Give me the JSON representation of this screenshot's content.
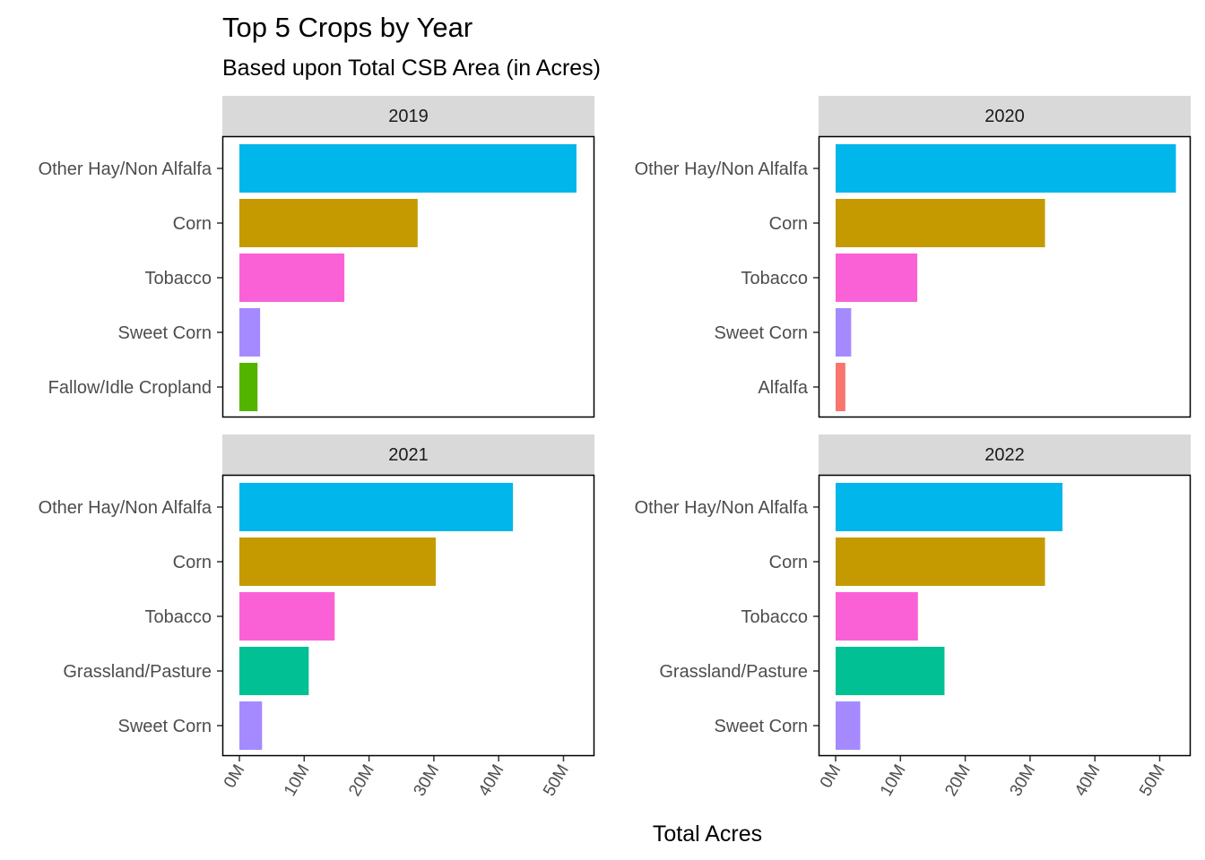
{
  "chart_data": {
    "type": "bar",
    "orientation": "horizontal",
    "title": "Top 5 Crops by Year",
    "subtitle": "Based upon Total CSB Area (in Acres)",
    "xlabel": "Total Acres",
    "ylabel": "",
    "xlim": [
      0,
      55000000
    ],
    "x_ticks": [
      0,
      10000000,
      20000000,
      30000000,
      40000000,
      50000000
    ],
    "x_tick_labels": [
      "0M",
      "10M",
      "20M",
      "30M",
      "40M",
      "50M"
    ],
    "grid": false,
    "legend": "none",
    "colors": {
      "Other Hay/Non Alfalfa": "#00B6EB",
      "Corn": "#C49A00",
      "Tobacco": "#FB61D7",
      "Sweet Corn": "#A58AFF",
      "Fallow/Idle Cropland": "#53B400",
      "Alfalfa": "#F8766D",
      "Grassland/Pasture": "#00C094"
    },
    "panels": [
      {
        "facet": "2019",
        "categories": [
          "Other Hay/Non Alfalfa",
          "Corn",
          "Tobacco",
          "Sweet Corn",
          "Fallow/Idle Cropland"
        ],
        "values": [
          52000000,
          27500000,
          16200000,
          3200000,
          2800000
        ]
      },
      {
        "facet": "2020",
        "categories": [
          "Other Hay/Non Alfalfa",
          "Corn",
          "Tobacco",
          "Sweet Corn",
          "Alfalfa"
        ],
        "values": [
          52500000,
          32300000,
          12600000,
          2400000,
          1500000
        ]
      },
      {
        "facet": "2021",
        "categories": [
          "Other Hay/Non Alfalfa",
          "Corn",
          "Tobacco",
          "Grassland/Pasture",
          "Sweet Corn"
        ],
        "values": [
          42200000,
          30300000,
          14700000,
          10700000,
          3500000
        ]
      },
      {
        "facet": "2022",
        "categories": [
          "Other Hay/Non Alfalfa",
          "Corn",
          "Tobacco",
          "Grassland/Pasture",
          "Sweet Corn"
        ],
        "values": [
          35000000,
          32300000,
          12700000,
          16800000,
          3800000
        ]
      }
    ]
  }
}
